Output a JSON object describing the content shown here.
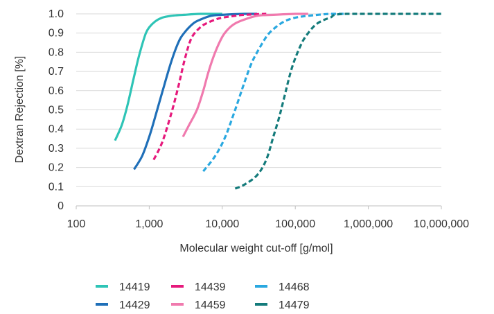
{
  "chart_data": {
    "type": "line",
    "xscale": "log",
    "xlim": [
      100,
      10000000
    ],
    "ylim": [
      0,
      1
    ],
    "grid": "horizontal",
    "legend_position": "bottom",
    "xlabel": "Molecular weight cut-off [g/mol]",
    "ylabel": "Dextran Rejection [%]",
    "x_ticks": [
      100,
      1000,
      10000,
      100000,
      1000000,
      10000000
    ],
    "x_tick_labels": [
      "100",
      "1,000",
      "10,000",
      "100,000",
      "1,000,000",
      "10,000,000"
    ],
    "y_ticks": [
      0,
      0.1,
      0.2,
      0.3,
      0.4,
      0.5,
      0.6,
      0.7,
      0.8,
      0.9,
      1.0
    ],
    "y_tick_labels": [
      "0",
      "0.1",
      "0.2",
      "0.3",
      "0.4",
      "0.5",
      "0.6",
      "0.7",
      "0.8",
      "0.9",
      "1.0"
    ],
    "series": [
      {
        "name": "14419",
        "color": "#2ec4b6",
        "dash": "solid",
        "x": [
          340,
          420,
          500,
          600,
          700,
          800,
          900,
          1000,
          1200,
          1500,
          2000,
          3000,
          5000,
          10000
        ],
        "y": [
          0.34,
          0.42,
          0.52,
          0.65,
          0.76,
          0.84,
          0.9,
          0.93,
          0.96,
          0.98,
          0.99,
          0.995,
          1.0,
          1.0
        ]
      },
      {
        "name": "14429",
        "color": "#1f6fb8",
        "dash": "solid",
        "x": [
          620,
          800,
          1000,
          1200,
          1500,
          2000,
          2500,
          3000,
          4000,
          5000,
          7000,
          10000,
          20000,
          30000
        ],
        "y": [
          0.19,
          0.26,
          0.36,
          0.46,
          0.59,
          0.75,
          0.85,
          0.9,
          0.95,
          0.97,
          0.99,
          0.995,
          1.0,
          1.0
        ]
      },
      {
        "name": "14439",
        "color": "#e6197c",
        "dash": "dashed",
        "x": [
          1150,
          1500,
          2000,
          2500,
          3000,
          3500,
          4000,
          5000,
          6000,
          8000,
          10000,
          15000,
          20000,
          40000
        ],
        "y": [
          0.24,
          0.33,
          0.48,
          0.62,
          0.75,
          0.84,
          0.89,
          0.93,
          0.95,
          0.97,
          0.98,
          0.99,
          0.995,
          1.0
        ]
      },
      {
        "name": "14459",
        "color": "#f07aae",
        "dash": "solid",
        "x": [
          2900,
          3500,
          4500,
          5500,
          6500,
          8000,
          10000,
          12000,
          15000,
          20000,
          30000,
          50000,
          100000,
          150000
        ],
        "y": [
          0.36,
          0.42,
          0.5,
          0.6,
          0.7,
          0.8,
          0.88,
          0.92,
          0.95,
          0.97,
          0.99,
          0.995,
          1.0,
          1.0
        ]
      },
      {
        "name": "14468",
        "color": "#29a8e0",
        "dash": "dashed",
        "x": [
          5500,
          8000,
          11000,
          15000,
          20000,
          25000,
          30000,
          40000,
          50000,
          70000,
          100000,
          150000,
          300000,
          500000
        ],
        "y": [
          0.18,
          0.26,
          0.36,
          0.5,
          0.64,
          0.74,
          0.8,
          0.88,
          0.92,
          0.96,
          0.98,
          0.99,
          1.0,
          1.0
        ]
      },
      {
        "name": "14479",
        "color": "#147b7b",
        "dash": "dashed",
        "x": [
          15000,
          20000,
          30000,
          40000,
          50000,
          60000,
          70000,
          90000,
          120000,
          150000,
          200000,
          300000,
          500000,
          10000000
        ],
        "y": [
          0.09,
          0.11,
          0.16,
          0.24,
          0.36,
          0.46,
          0.56,
          0.72,
          0.84,
          0.9,
          0.95,
          0.98,
          1.0,
          1.0
        ]
      }
    ]
  }
}
